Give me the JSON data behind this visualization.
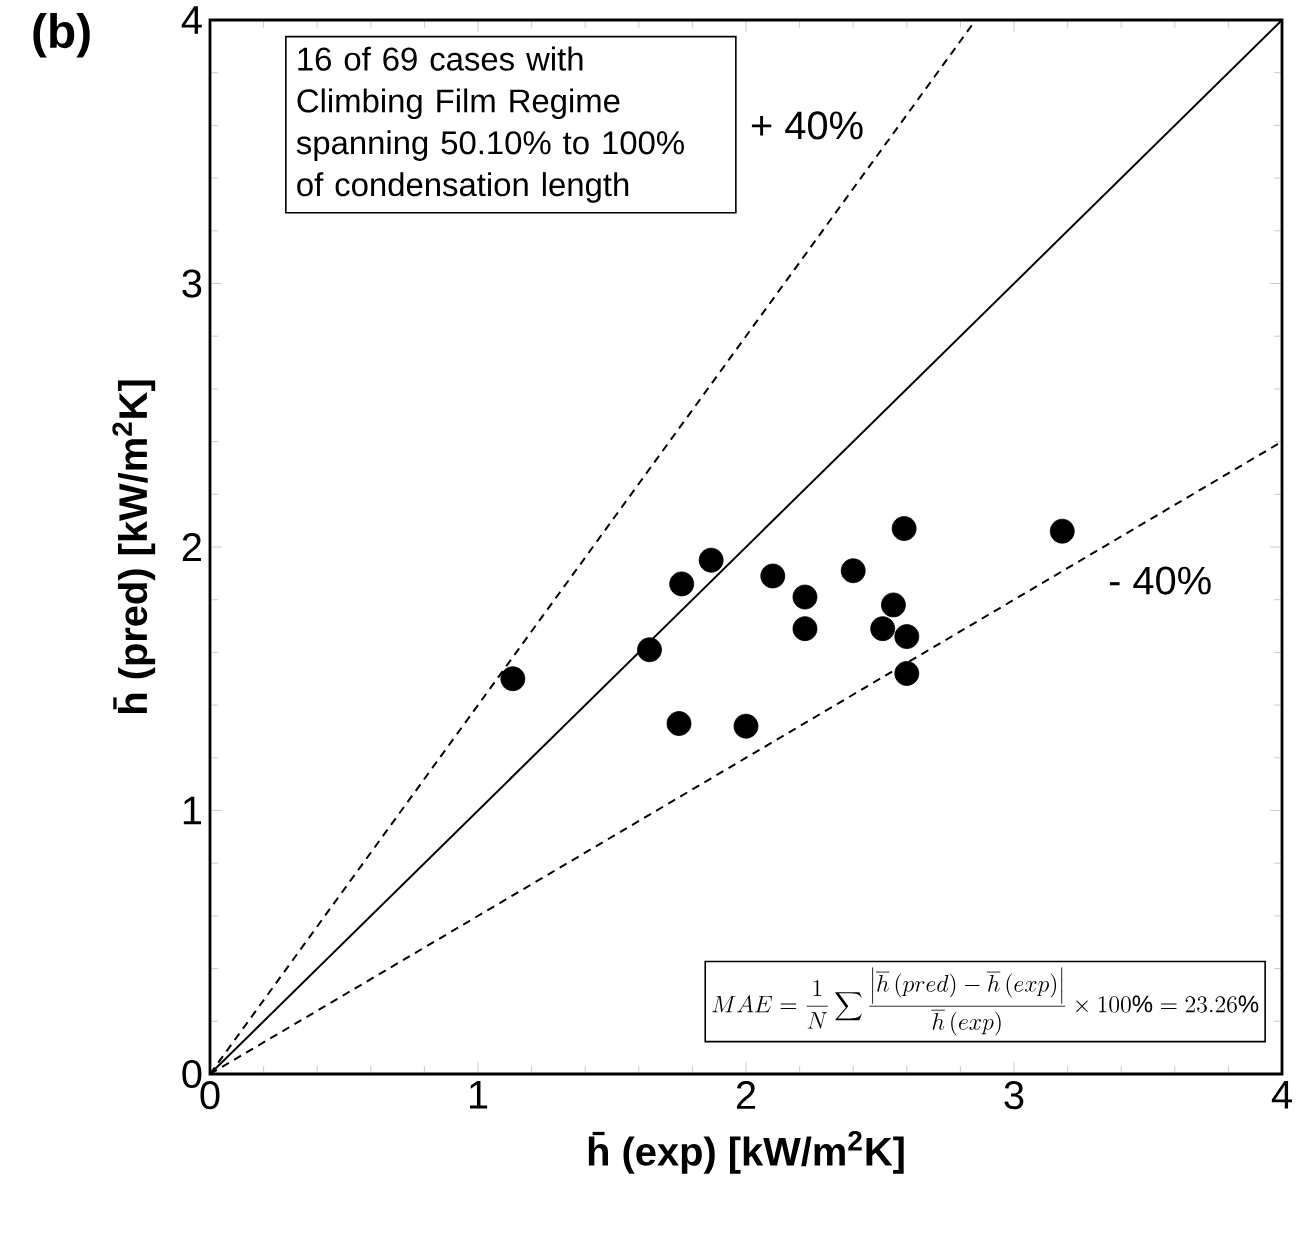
{
  "chart_data": {
    "type": "scatter",
    "title": "(b)",
    "xlabel": "h̄ (exp) [kW/m$^{2}$K]",
    "ylabel": "h̄ (pred) [kW/m$^{2}$K]",
    "xlim": [
      0,
      4
    ],
    "ylim": [
      0,
      4
    ],
    "xticks": [
      0,
      1,
      2,
      3,
      4
    ],
    "yticks": [
      0,
      1,
      2,
      3,
      4
    ],
    "grid": false,
    "legend": false,
    "series": [
      {
        "marker": "circle",
        "color": "#000000",
        "x": [
          1.13,
          1.64,
          1.75,
          1.76,
          1.87,
          2.0,
          2.1,
          2.22,
          2.22,
          2.4,
          2.51,
          2.55,
          2.59,
          2.6,
          2.6,
          3.18
        ],
        "values": [
          1.5,
          1.61,
          1.33,
          1.86,
          1.95,
          1.32,
          1.89,
          1.81,
          1.69,
          1.91,
          1.69,
          1.78,
          2.07,
          1.66,
          1.52,
          2.06
        ]
      },
      {
        "type": "line",
        "color": "#000000",
        "line_style": "solid",
        "marker": "none",
        "x": [
          0,
          4
        ],
        "values": [
          0,
          4
        ]
      },
      {
        "type": "line",
        "name": "+ 40%",
        "color": "#000000",
        "line_style": "dashed",
        "marker": "none",
        "x": [
          0,
          2.857
        ],
        "values": [
          0,
          4
        ]
      },
      {
        "type": "line",
        "name": "- 40%",
        "color": "#000000",
        "line_style": "dashed",
        "marker": "none",
        "x": [
          0,
          4
        ],
        "values": [
          0,
          2.4
        ]
      }
    ],
    "annotations": [
      "16 of 69 cases with Climbing Film Regime spanning 50.10% to 100% of condensation length",
      "MAE = \\frac{1}{N}\\sum \\frac{\\left|\\overline{h}\\left(pred\\right) - \\overline{h}\\left(exp\\right)\\right|}{\\overline{h}\\left(exp\\right)} \\times 100\\% = 23.26\\%"
    ]
  }
}
